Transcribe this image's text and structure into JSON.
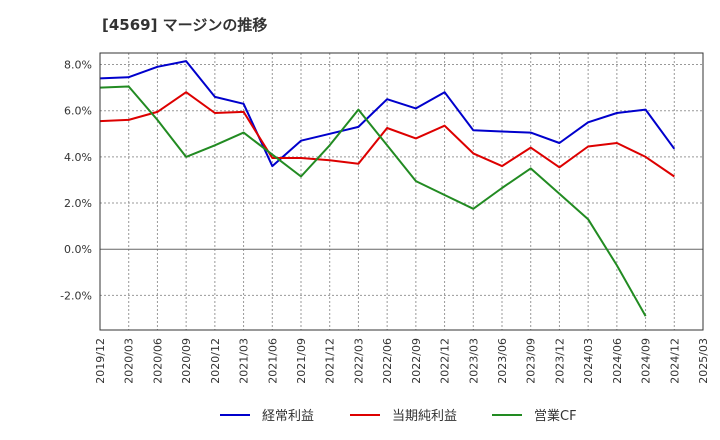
{
  "chart_data": {
    "type": "line",
    "title": "[4569]  マージンの推移",
    "x": [
      "2019/12",
      "2020/03",
      "2020/06",
      "2020/09",
      "2020/12",
      "2021/03",
      "2021/06",
      "2021/09",
      "2021/12",
      "2022/03",
      "2022/06",
      "2022/09",
      "2022/12",
      "2023/03",
      "2023/06",
      "2023/09",
      "2023/12",
      "2024/03",
      "2024/06",
      "2024/09",
      "2024/12",
      "2025/03"
    ],
    "ylim": [
      -3.5,
      8.5
    ],
    "yticks": [
      -2,
      0,
      2,
      4,
      6,
      8
    ],
    "ytick_labels": [
      "-2.0%",
      "0.0%",
      "2.0%",
      "4.0%",
      "6.0%",
      "8.0%"
    ],
    "grid": true,
    "legend_position": "bottom",
    "series": [
      {
        "name": "経常利益",
        "color": "#0000cc",
        "values": [
          7.4,
          7.45,
          7.9,
          8.15,
          6.6,
          6.3,
          3.6,
          4.7,
          5.0,
          5.3,
          6.5,
          6.1,
          6.8,
          5.15,
          5.1,
          5.05,
          4.6,
          5.5,
          5.9,
          6.05,
          4.35,
          null
        ]
      },
      {
        "name": "当期純利益",
        "color": "#dd0000",
        "values": [
          5.55,
          5.6,
          5.95,
          6.8,
          5.9,
          5.95,
          3.95,
          3.95,
          3.85,
          3.7,
          5.25,
          4.8,
          5.35,
          4.15,
          3.6,
          4.4,
          3.55,
          4.45,
          4.6,
          4.0,
          3.15,
          null
        ]
      },
      {
        "name": "営業CF",
        "color": "#228b22",
        "values": [
          7.0,
          7.05,
          5.6,
          4.0,
          4.5,
          5.05,
          4.1,
          3.15,
          4.5,
          6.05,
          4.5,
          2.95,
          2.35,
          1.75,
          2.65,
          3.5,
          2.4,
          1.3,
          -0.7,
          -2.9,
          null,
          null
        ]
      }
    ]
  }
}
